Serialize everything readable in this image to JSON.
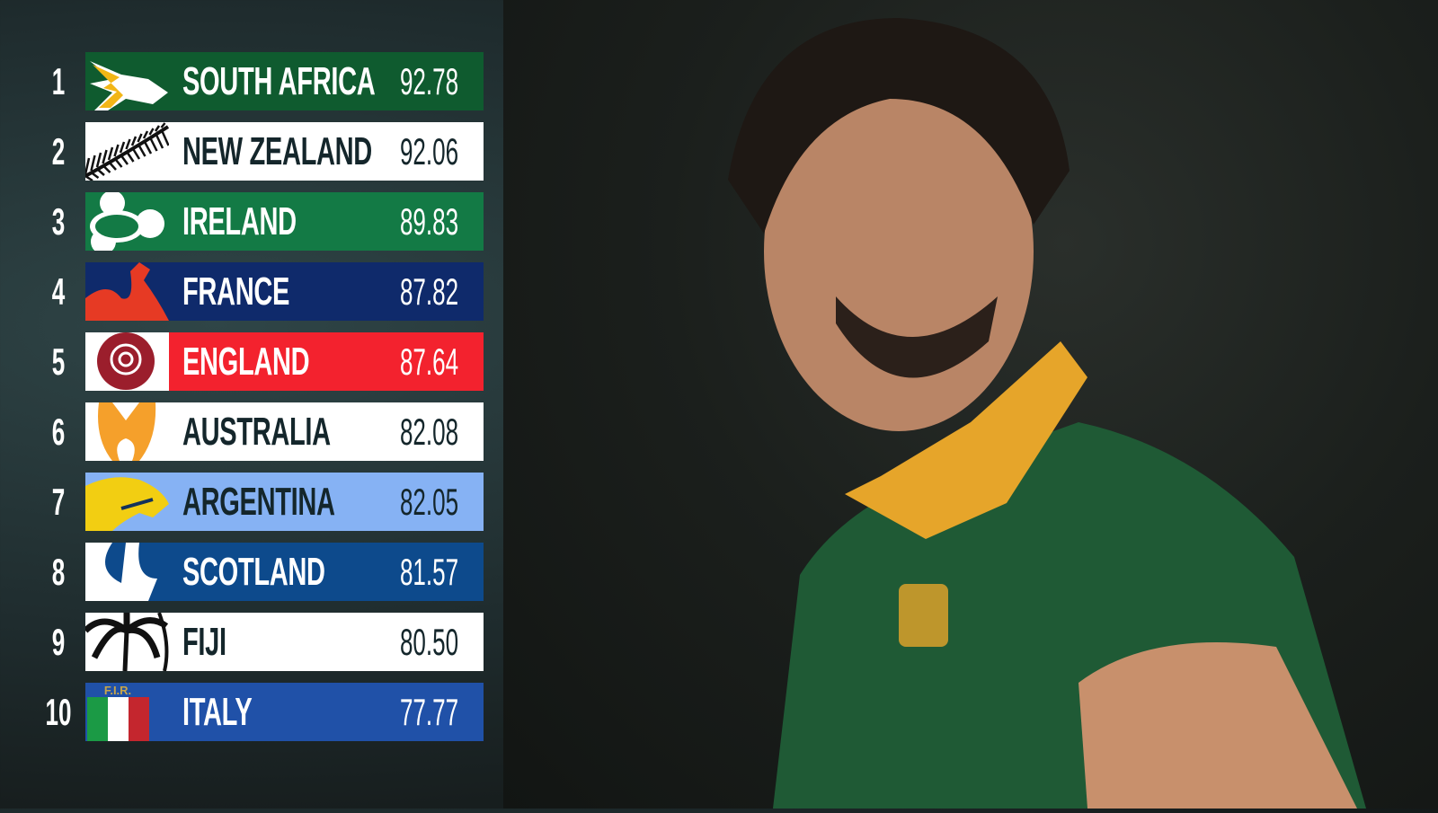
{
  "rankings": [
    {
      "rank": "1",
      "team": "SOUTH AFRICA",
      "points": "92.78",
      "bg": "#0f5b2f",
      "fg": "#ffffff",
      "logo": "springbok-logo"
    },
    {
      "rank": "2",
      "team": "NEW ZEALAND",
      "points": "92.06",
      "bg": "#ffffff",
      "fg": "#14262b",
      "logo": "silver-fern-logo"
    },
    {
      "rank": "3",
      "team": "IRELAND",
      "points": "89.83",
      "bg": "#137a45",
      "fg": "#ffffff",
      "logo": "shamrock-logo"
    },
    {
      "rank": "4",
      "team": "FRANCE",
      "points": "87.82",
      "bg": "#0f2a6b",
      "fg": "#ffffff",
      "logo": "rooster-logo"
    },
    {
      "rank": "5",
      "team": "ENGLAND",
      "points": "87.64",
      "bg": "#f3222e",
      "fg": "#ffffff",
      "logo": "rose-logo"
    },
    {
      "rank": "6",
      "team": "AUSTRALIA",
      "points": "82.08",
      "bg": "#ffffff",
      "fg": "#14262b",
      "logo": "wallabies-logo"
    },
    {
      "rank": "7",
      "team": "ARGENTINA",
      "points": "82.05",
      "bg": "#86b2f4",
      "fg": "#14262b",
      "logo": "puma-logo"
    },
    {
      "rank": "8",
      "team": "SCOTLAND",
      "points": "81.57",
      "bg": "#0d4a8c",
      "fg": "#ffffff",
      "logo": "thistle-logo"
    },
    {
      "rank": "9",
      "team": "FIJI",
      "points": "80.50",
      "bg": "#ffffff",
      "fg": "#14262b",
      "logo": "palm-tree-logo"
    },
    {
      "rank": "10",
      "team": "ITALY",
      "points": "77.77",
      "bg": "#2051a8",
      "fg": "#ffffff",
      "logo": "fir-logo",
      "logo_text": "F.I.R."
    }
  ]
}
